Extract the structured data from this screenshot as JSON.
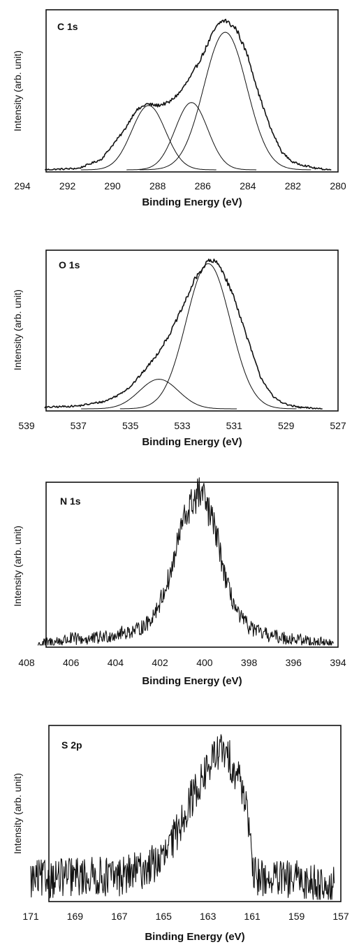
{
  "chart_data": [
    {
      "type": "line",
      "panel_label": "C 1s",
      "xlabel": "Binding Energy (eV)",
      "ylabel": "Intensity (arb. unit)",
      "xlim": [
        294,
        280
      ],
      "x_ticks": [
        "294",
        "292",
        "290",
        "288",
        "286",
        "284",
        "282",
        "280"
      ],
      "y_ticks": false,
      "noise_level": 0.012,
      "series": [
        {
          "x": [
            293,
            291.5,
            290.5,
            289.5,
            289,
            288.5,
            288,
            287.5,
            287,
            286.5,
            286,
            285.5,
            285.2,
            285,
            284.5,
            284,
            283.5,
            283,
            282.5,
            282,
            281,
            280.3
          ],
          "y": [
            0.0,
            0.01,
            0.07,
            0.26,
            0.39,
            0.44,
            0.43,
            0.45,
            0.52,
            0.63,
            0.77,
            0.93,
            0.99,
            1.0,
            0.94,
            0.76,
            0.5,
            0.28,
            0.12,
            0.05,
            0.01,
            0.0
          ]
        },
        {
          "gaussian": {
            "center": 288.4,
            "height": 0.43,
            "sigma": 0.75
          }
        },
        {
          "gaussian": {
            "center": 286.5,
            "height": 0.45,
            "sigma": 0.72
          }
        },
        {
          "gaussian": {
            "center": 285.0,
            "height": 0.92,
            "sigma": 0.95
          }
        }
      ]
    },
    {
      "type": "line",
      "panel_label": "O 1s",
      "xlabel": "Binding Energy (eV)",
      "ylabel": "Intensity (arb. unit)",
      "xlim": [
        539,
        527
      ],
      "x_ticks": [
        "539",
        "537",
        "535",
        "533",
        "531",
        "529",
        "527"
      ],
      "y_ticks": false,
      "noise_level": 0.012,
      "series": [
        {
          "x": [
            538.3,
            537,
            536,
            535.5,
            535,
            534.5,
            534,
            533.5,
            533,
            532.5,
            532,
            531.7,
            531.5,
            531,
            530.5,
            530,
            529.5,
            529,
            528.5,
            527.6
          ],
          "y": [
            0.01,
            0.02,
            0.05,
            0.09,
            0.15,
            0.25,
            0.36,
            0.5,
            0.68,
            0.88,
            1.0,
            0.99,
            0.95,
            0.75,
            0.48,
            0.22,
            0.08,
            0.03,
            0.01,
            0.0
          ]
        },
        {
          "gaussian": {
            "center": 533.9,
            "height": 0.2,
            "sigma": 0.75
          }
        },
        {
          "gaussian": {
            "center": 532.0,
            "height": 0.98,
            "sigma": 0.85
          }
        }
      ]
    },
    {
      "type": "line",
      "panel_label": "N 1s",
      "xlabel": "Binding Energy (eV)",
      "ylabel": "Intensity (arb. unit)",
      "xlim": [
        408,
        394
      ],
      "x_ticks": [
        "408",
        "406",
        "404",
        "402",
        "400",
        "398",
        "396",
        "394"
      ],
      "y_ticks": false,
      "noise_level": 0.08,
      "series": [
        {
          "x": [
            407.5,
            406,
            405,
            404,
            403,
            402.5,
            402,
            401.5,
            401,
            400.5,
            400.2,
            400,
            399.5,
            399,
            398.5,
            398,
            397.5,
            397,
            396,
            395,
            394.2
          ],
          "y": [
            0.0,
            0.04,
            0.04,
            0.07,
            0.1,
            0.15,
            0.28,
            0.48,
            0.8,
            0.95,
            1.0,
            0.95,
            0.75,
            0.4,
            0.2,
            0.12,
            0.08,
            0.06,
            0.04,
            0.02,
            0.0
          ]
        }
      ]
    },
    {
      "type": "line",
      "panel_label": "S 2p",
      "xlabel": "Binding Energy (eV)",
      "ylabel": "Intensity (arb. unit)",
      "xlim": [
        171,
        157
      ],
      "x_ticks": [
        "171",
        "169",
        "167",
        "165",
        "163",
        "161",
        "159",
        "157"
      ],
      "y_ticks": false,
      "noise_level": 0.12,
      "series": [
        {
          "x": [
            171,
            169,
            167,
            166,
            165,
            164.5,
            164,
            163.5,
            163,
            162.5,
            162,
            161.5,
            161.2,
            161,
            160,
            159,
            158,
            157.3
          ],
          "y": [
            0.12,
            0.14,
            0.14,
            0.18,
            0.25,
            0.38,
            0.55,
            0.68,
            0.8,
            0.92,
            0.85,
            0.72,
            0.55,
            0.15,
            0.12,
            0.12,
            0.1,
            0.08
          ]
        }
      ]
    }
  ]
}
